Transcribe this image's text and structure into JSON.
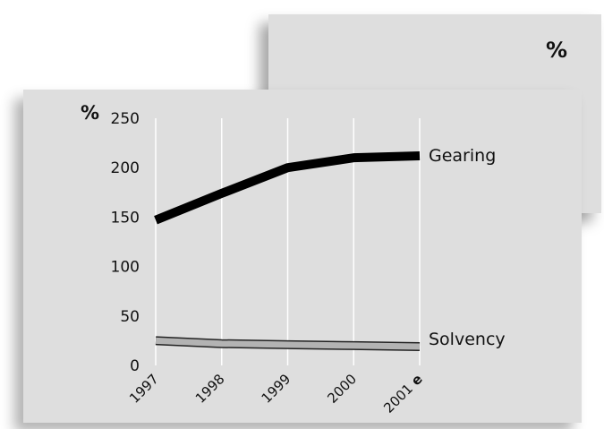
{
  "chart_data": {
    "type": "line",
    "unit_label": "%",
    "unit_label_back": "%",
    "x": [
      "1997",
      "1998",
      "1999",
      "2000",
      "2001"
    ],
    "x_suffix_last": "e",
    "ylim": [
      0,
      250
    ],
    "yticks": [
      "0",
      "50",
      "100",
      "150",
      "200",
      "250"
    ],
    "grid": "vertical",
    "series": [
      {
        "name": "Gearing",
        "values": [
          147,
          174,
          200,
          210,
          212
        ],
        "color": "#000000"
      },
      {
        "name": "Solvency",
        "values": [
          25,
          22,
          21,
          20,
          19
        ],
        "color": "#b3b3b3"
      }
    ]
  }
}
